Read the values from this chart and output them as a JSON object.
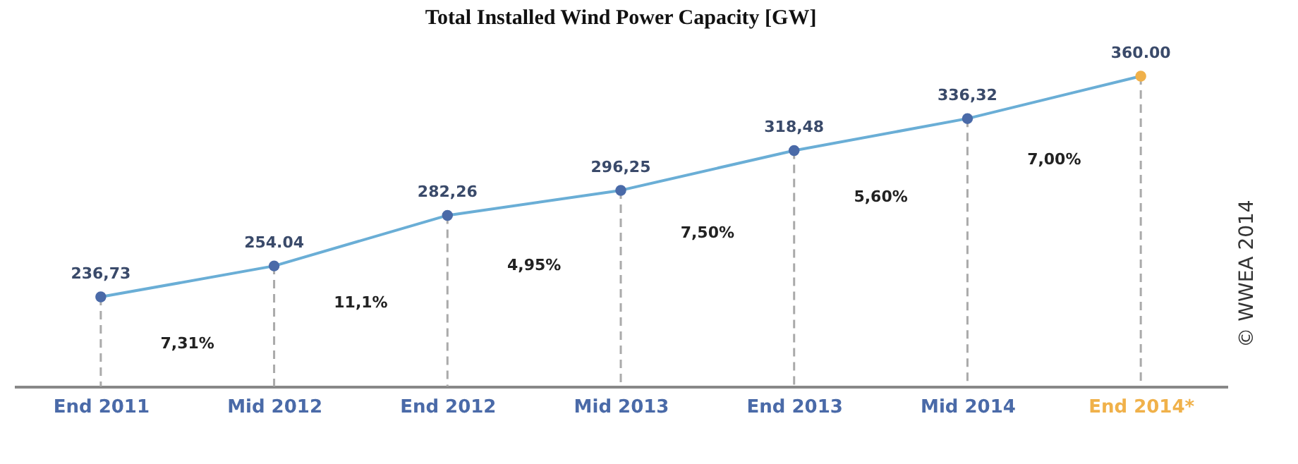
{
  "chart_data": {
    "type": "line",
    "title": "Total Installed Wind Power Capacity [GW]",
    "categories": [
      "End 2011",
      "Mid 2012",
      "End 2012",
      "Mid 2013",
      "End 2013",
      "Mid 2014",
      "End 2014*"
    ],
    "series": [
      {
        "color": "#6aaed6",
        "colors": [
          "#4a6aa8",
          "#4a6aa8",
          "#4a6aa8",
          "#4a6aa8",
          "#4a6aa8",
          "#4a6aa8",
          "#f0b14a"
        ],
        "values": [
          236.73,
          254.04,
          282.26,
          296.25,
          318.48,
          336.32,
          360.0
        ],
        "value_labels": [
          "236,73",
          "254.04",
          "282,26",
          "296,25",
          "318,48",
          "336,32",
          "360.00"
        ]
      }
    ],
    "annotations": [
      "7,31%",
      "11,1%",
      "4,95%",
      "7,50%",
      "5,60%",
      "7,00%",
      "© WWEA 2014"
    ],
    "marker": "circle",
    "line_style": "solid",
    "grid": "x"
  }
}
